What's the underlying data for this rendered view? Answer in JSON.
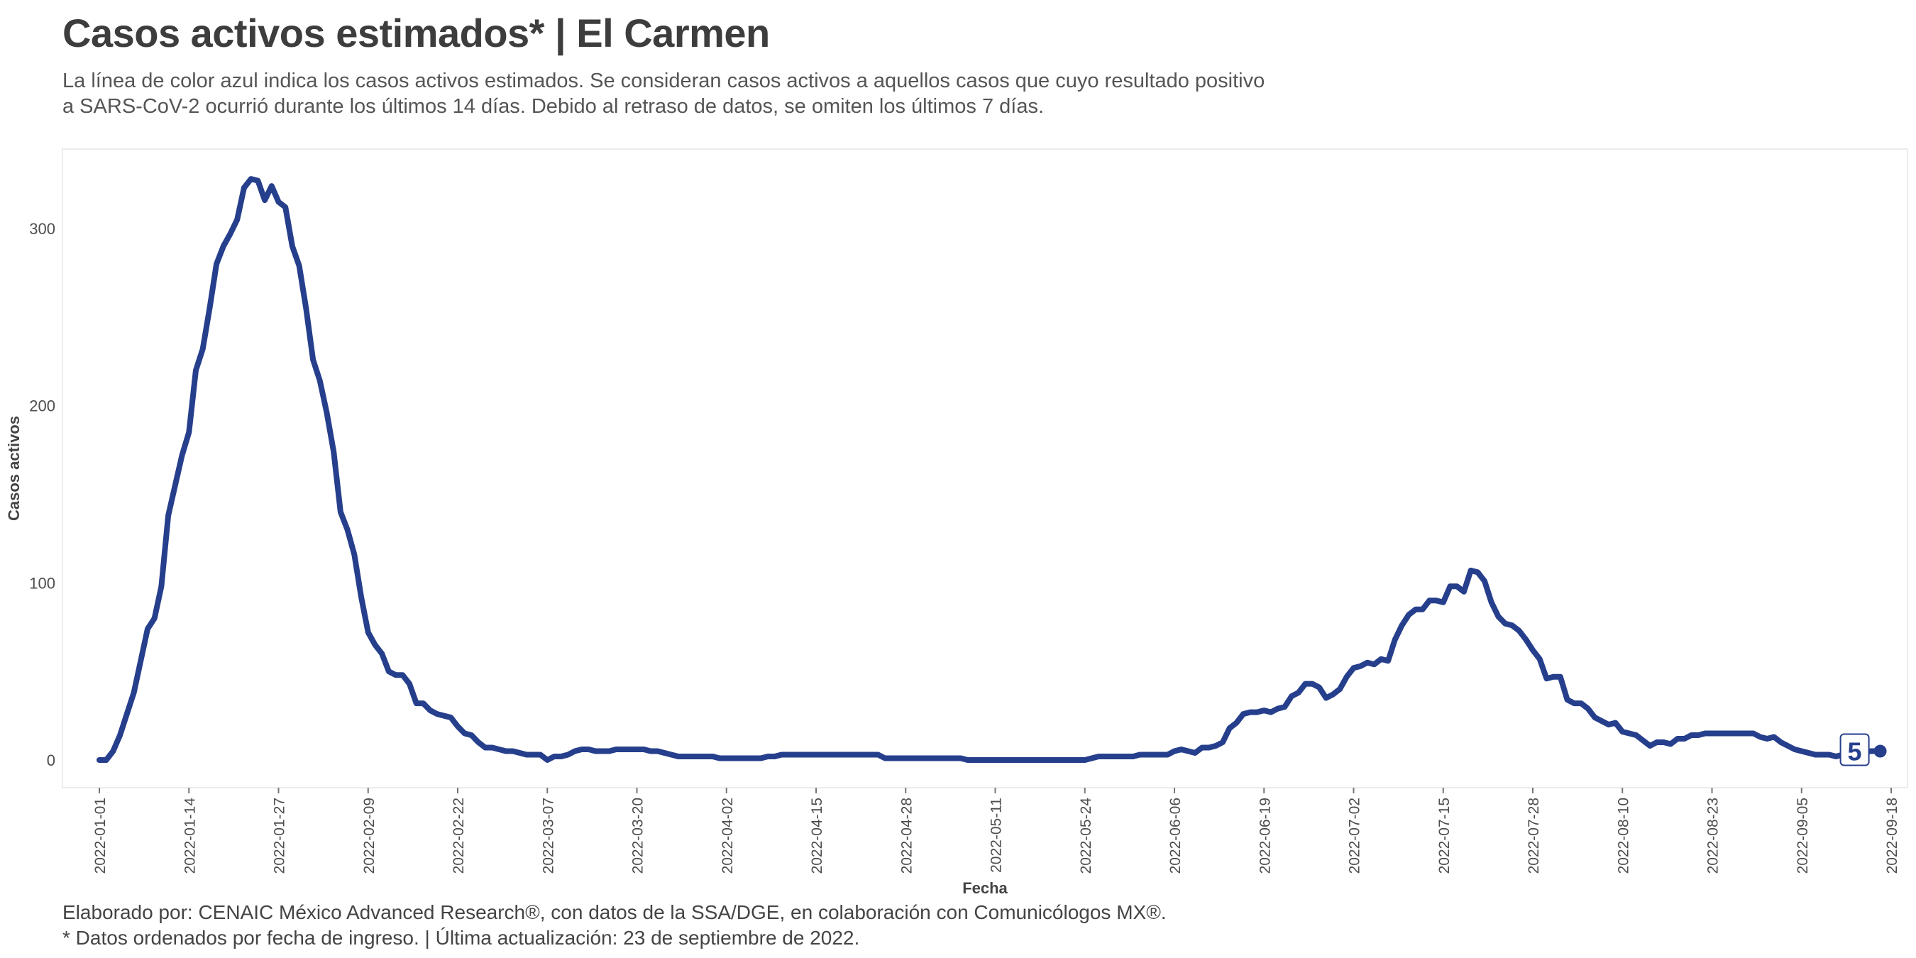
{
  "title": "Casos activos estimados* | El Carmen",
  "subtitle": [
    "La línea de color azul indica los casos activos estimados. Se consideran casos activos a aquellos casos que cuyo resultado positivo",
    "a SARS-CoV-2 ocurrió durante los últimos 14 días. Debido al retraso de datos, se omiten los últimos 7 días."
  ],
  "caption": [
    "Elaborado por: CENAIC México Advanced Research®, con datos de la SSA/DGE, en colaboración con Comunicólogos MX®.",
    "* Datos ordenados por fecha de ingreso. | Última actualización: 23 de septiembre de 2022."
  ],
  "colors": {
    "line": "#263f8c",
    "axis_text": "#4d4d4d",
    "panel_border": "#e6e6e6"
  },
  "chart_data": {
    "type": "line",
    "xlabel": "Fecha",
    "ylabel": "Casos activos",
    "x_ticks": [
      "2022-01-01",
      "2022-01-14",
      "2022-01-27",
      "2022-02-09",
      "2022-02-22",
      "2022-03-07",
      "2022-03-20",
      "2022-04-02",
      "2022-04-15",
      "2022-04-28",
      "2022-05-11",
      "2022-05-24",
      "2022-06-06",
      "2022-06-19",
      "2022-07-02",
      "2022-07-15",
      "2022-07-28",
      "2022-08-10",
      "2022-08-23",
      "2022-09-05",
      "2022-09-18"
    ],
    "y_ticks": [
      0,
      100,
      200,
      300
    ],
    "xlim": [
      "2022-01-01",
      "2022-09-18"
    ],
    "ylim": [
      0,
      330
    ],
    "grid": false,
    "end_label": "5",
    "series": [
      {
        "points": [
          [
            "2022-01-01",
            0
          ],
          [
            "2022-01-02",
            0
          ],
          [
            "2022-01-03",
            5
          ],
          [
            "2022-01-04",
            14
          ],
          [
            "2022-01-05",
            26
          ],
          [
            "2022-01-06",
            38
          ],
          [
            "2022-01-07",
            56
          ],
          [
            "2022-01-08",
            74
          ],
          [
            "2022-01-09",
            80
          ],
          [
            "2022-01-10",
            98
          ],
          [
            "2022-01-11",
            138
          ],
          [
            "2022-01-12",
            155
          ],
          [
            "2022-01-13",
            172
          ],
          [
            "2022-01-14",
            185
          ],
          [
            "2022-01-15",
            220
          ],
          [
            "2022-01-16",
            232
          ],
          [
            "2022-01-17",
            255
          ],
          [
            "2022-01-18",
            280
          ],
          [
            "2022-01-19",
            290
          ],
          [
            "2022-01-20",
            297
          ],
          [
            "2022-01-21",
            305
          ],
          [
            "2022-01-22",
            323
          ],
          [
            "2022-01-23",
            328
          ],
          [
            "2022-01-24",
            327
          ],
          [
            "2022-01-25",
            316
          ],
          [
            "2022-01-26",
            324
          ],
          [
            "2022-01-27",
            315
          ],
          [
            "2022-01-28",
            312
          ],
          [
            "2022-01-29",
            290
          ],
          [
            "2022-01-30",
            279
          ],
          [
            "2022-01-31",
            255
          ],
          [
            "2022-02-01",
            226
          ],
          [
            "2022-02-02",
            214
          ],
          [
            "2022-02-03",
            196
          ],
          [
            "2022-02-04",
            174
          ],
          [
            "2022-02-05",
            140
          ],
          [
            "2022-02-06",
            130
          ],
          [
            "2022-02-07",
            116
          ],
          [
            "2022-02-08",
            92
          ],
          [
            "2022-02-09",
            72
          ],
          [
            "2022-02-10",
            65
          ],
          [
            "2022-02-11",
            60
          ],
          [
            "2022-02-12",
            50
          ],
          [
            "2022-02-13",
            48
          ],
          [
            "2022-02-14",
            48
          ],
          [
            "2022-02-15",
            43
          ],
          [
            "2022-02-16",
            32
          ],
          [
            "2022-02-17",
            32
          ],
          [
            "2022-02-18",
            28
          ],
          [
            "2022-02-19",
            26
          ],
          [
            "2022-02-20",
            25
          ],
          [
            "2022-02-21",
            24
          ],
          [
            "2022-02-22",
            19
          ],
          [
            "2022-02-23",
            15
          ],
          [
            "2022-02-24",
            14
          ],
          [
            "2022-02-25",
            10
          ],
          [
            "2022-02-26",
            7
          ],
          [
            "2022-02-27",
            7
          ],
          [
            "2022-02-28",
            6
          ],
          [
            "2022-03-01",
            5
          ],
          [
            "2022-03-02",
            5
          ],
          [
            "2022-03-03",
            4
          ],
          [
            "2022-03-04",
            3
          ],
          [
            "2022-03-05",
            3
          ],
          [
            "2022-03-06",
            3
          ],
          [
            "2022-03-07",
            0
          ],
          [
            "2022-03-08",
            2
          ],
          [
            "2022-03-09",
            2
          ],
          [
            "2022-03-10",
            3
          ],
          [
            "2022-03-11",
            5
          ],
          [
            "2022-03-12",
            6
          ],
          [
            "2022-03-13",
            6
          ],
          [
            "2022-03-14",
            5
          ],
          [
            "2022-03-15",
            5
          ],
          [
            "2022-03-16",
            5
          ],
          [
            "2022-03-17",
            6
          ],
          [
            "2022-03-18",
            6
          ],
          [
            "2022-03-19",
            6
          ],
          [
            "2022-03-20",
            6
          ],
          [
            "2022-03-21",
            6
          ],
          [
            "2022-03-22",
            5
          ],
          [
            "2022-03-23",
            5
          ],
          [
            "2022-03-24",
            4
          ],
          [
            "2022-03-25",
            3
          ],
          [
            "2022-03-26",
            2
          ],
          [
            "2022-03-27",
            2
          ],
          [
            "2022-03-28",
            2
          ],
          [
            "2022-03-29",
            2
          ],
          [
            "2022-03-30",
            2
          ],
          [
            "2022-03-31",
            2
          ],
          [
            "2022-04-01",
            1
          ],
          [
            "2022-04-02",
            1
          ],
          [
            "2022-04-03",
            1
          ],
          [
            "2022-04-04",
            1
          ],
          [
            "2022-04-05",
            1
          ],
          [
            "2022-04-06",
            1
          ],
          [
            "2022-04-07",
            1
          ],
          [
            "2022-04-08",
            2
          ],
          [
            "2022-04-09",
            2
          ],
          [
            "2022-04-10",
            3
          ],
          [
            "2022-04-11",
            3
          ],
          [
            "2022-04-12",
            3
          ],
          [
            "2022-04-13",
            3
          ],
          [
            "2022-04-14",
            3
          ],
          [
            "2022-04-15",
            3
          ],
          [
            "2022-04-16",
            3
          ],
          [
            "2022-04-17",
            3
          ],
          [
            "2022-04-18",
            3
          ],
          [
            "2022-04-19",
            3
          ],
          [
            "2022-04-20",
            3
          ],
          [
            "2022-04-21",
            3
          ],
          [
            "2022-04-22",
            3
          ],
          [
            "2022-04-23",
            3
          ],
          [
            "2022-04-24",
            3
          ],
          [
            "2022-04-25",
            1
          ],
          [
            "2022-04-26",
            1
          ],
          [
            "2022-04-27",
            1
          ],
          [
            "2022-04-28",
            1
          ],
          [
            "2022-04-29",
            1
          ],
          [
            "2022-04-30",
            1
          ],
          [
            "2022-05-01",
            1
          ],
          [
            "2022-05-02",
            1
          ],
          [
            "2022-05-03",
            1
          ],
          [
            "2022-05-04",
            1
          ],
          [
            "2022-05-05",
            1
          ],
          [
            "2022-05-06",
            1
          ],
          [
            "2022-05-07",
            0
          ],
          [
            "2022-05-08",
            0
          ],
          [
            "2022-05-09",
            0
          ],
          [
            "2022-05-10",
            0
          ],
          [
            "2022-05-11",
            0
          ],
          [
            "2022-05-12",
            0
          ],
          [
            "2022-05-13",
            0
          ],
          [
            "2022-05-14",
            0
          ],
          [
            "2022-05-15",
            0
          ],
          [
            "2022-05-16",
            0
          ],
          [
            "2022-05-17",
            0
          ],
          [
            "2022-05-18",
            0
          ],
          [
            "2022-05-19",
            0
          ],
          [
            "2022-05-20",
            0
          ],
          [
            "2022-05-21",
            0
          ],
          [
            "2022-05-22",
            0
          ],
          [
            "2022-05-23",
            0
          ],
          [
            "2022-05-24",
            0
          ],
          [
            "2022-05-25",
            1
          ],
          [
            "2022-05-26",
            2
          ],
          [
            "2022-05-27",
            2
          ],
          [
            "2022-05-28",
            2
          ],
          [
            "2022-05-29",
            2
          ],
          [
            "2022-05-30",
            2
          ],
          [
            "2022-05-31",
            2
          ],
          [
            "2022-06-01",
            3
          ],
          [
            "2022-06-02",
            3
          ],
          [
            "2022-06-03",
            3
          ],
          [
            "2022-06-04",
            3
          ],
          [
            "2022-06-05",
            3
          ],
          [
            "2022-06-06",
            5
          ],
          [
            "2022-06-07",
            6
          ],
          [
            "2022-06-08",
            5
          ],
          [
            "2022-06-09",
            4
          ],
          [
            "2022-06-10",
            7
          ],
          [
            "2022-06-11",
            7
          ],
          [
            "2022-06-12",
            8
          ],
          [
            "2022-06-13",
            10
          ],
          [
            "2022-06-14",
            18
          ],
          [
            "2022-06-15",
            21
          ],
          [
            "2022-06-16",
            26
          ],
          [
            "2022-06-17",
            27
          ],
          [
            "2022-06-18",
            27
          ],
          [
            "2022-06-19",
            28
          ],
          [
            "2022-06-20",
            27
          ],
          [
            "2022-06-21",
            29
          ],
          [
            "2022-06-22",
            30
          ],
          [
            "2022-06-23",
            36
          ],
          [
            "2022-06-24",
            38
          ],
          [
            "2022-06-25",
            43
          ],
          [
            "2022-06-26",
            43
          ],
          [
            "2022-06-27",
            41
          ],
          [
            "2022-06-28",
            35
          ],
          [
            "2022-06-29",
            37
          ],
          [
            "2022-06-30",
            40
          ],
          [
            "2022-07-01",
            47
          ],
          [
            "2022-07-02",
            52
          ],
          [
            "2022-07-03",
            53
          ],
          [
            "2022-07-04",
            55
          ],
          [
            "2022-07-05",
            54
          ],
          [
            "2022-07-06",
            57
          ],
          [
            "2022-07-07",
            56
          ],
          [
            "2022-07-08",
            68
          ],
          [
            "2022-07-09",
            76
          ],
          [
            "2022-07-10",
            82
          ],
          [
            "2022-07-11",
            85
          ],
          [
            "2022-07-12",
            85
          ],
          [
            "2022-07-13",
            90
          ],
          [
            "2022-07-14",
            90
          ],
          [
            "2022-07-15",
            89
          ],
          [
            "2022-07-16",
            98
          ],
          [
            "2022-07-17",
            98
          ],
          [
            "2022-07-18",
            95
          ],
          [
            "2022-07-19",
            107
          ],
          [
            "2022-07-20",
            106
          ],
          [
            "2022-07-21",
            101
          ],
          [
            "2022-07-22",
            89
          ],
          [
            "2022-07-23",
            81
          ],
          [
            "2022-07-24",
            77
          ],
          [
            "2022-07-25",
            76
          ],
          [
            "2022-07-26",
            73
          ],
          [
            "2022-07-27",
            68
          ],
          [
            "2022-07-28",
            62
          ],
          [
            "2022-07-29",
            57
          ],
          [
            "2022-07-30",
            46
          ],
          [
            "2022-07-31",
            47
          ],
          [
            "2022-08-01",
            47
          ],
          [
            "2022-08-02",
            34
          ],
          [
            "2022-08-03",
            32
          ],
          [
            "2022-08-04",
            32
          ],
          [
            "2022-08-05",
            29
          ],
          [
            "2022-08-06",
            24
          ],
          [
            "2022-08-07",
            22
          ],
          [
            "2022-08-08",
            20
          ],
          [
            "2022-08-09",
            21
          ],
          [
            "2022-08-10",
            16
          ],
          [
            "2022-08-11",
            15
          ],
          [
            "2022-08-12",
            14
          ],
          [
            "2022-08-13",
            11
          ],
          [
            "2022-08-14",
            8
          ],
          [
            "2022-08-15",
            10
          ],
          [
            "2022-08-16",
            10
          ],
          [
            "2022-08-17",
            9
          ],
          [
            "2022-08-18",
            12
          ],
          [
            "2022-08-19",
            12
          ],
          [
            "2022-08-20",
            14
          ],
          [
            "2022-08-21",
            14
          ],
          [
            "2022-08-22",
            15
          ],
          [
            "2022-08-23",
            15
          ],
          [
            "2022-08-24",
            15
          ],
          [
            "2022-08-25",
            15
          ],
          [
            "2022-08-26",
            15
          ],
          [
            "2022-08-27",
            15
          ],
          [
            "2022-08-28",
            15
          ],
          [
            "2022-08-29",
            15
          ],
          [
            "2022-08-30",
            13
          ],
          [
            "2022-08-31",
            12
          ],
          [
            "2022-09-01",
            13
          ],
          [
            "2022-09-02",
            10
          ],
          [
            "2022-09-03",
            8
          ],
          [
            "2022-09-04",
            6
          ],
          [
            "2022-09-05",
            5
          ],
          [
            "2022-09-06",
            4
          ],
          [
            "2022-09-07",
            3
          ],
          [
            "2022-09-08",
            3
          ],
          [
            "2022-09-09",
            3
          ],
          [
            "2022-09-10",
            2
          ],
          [
            "2022-09-11",
            3
          ],
          [
            "2022-09-12",
            3
          ],
          [
            "2022-09-13",
            3
          ],
          [
            "2022-09-14",
            4
          ],
          [
            "2022-09-15",
            5
          ],
          [
            "2022-09-16",
            5
          ]
        ]
      }
    ]
  }
}
